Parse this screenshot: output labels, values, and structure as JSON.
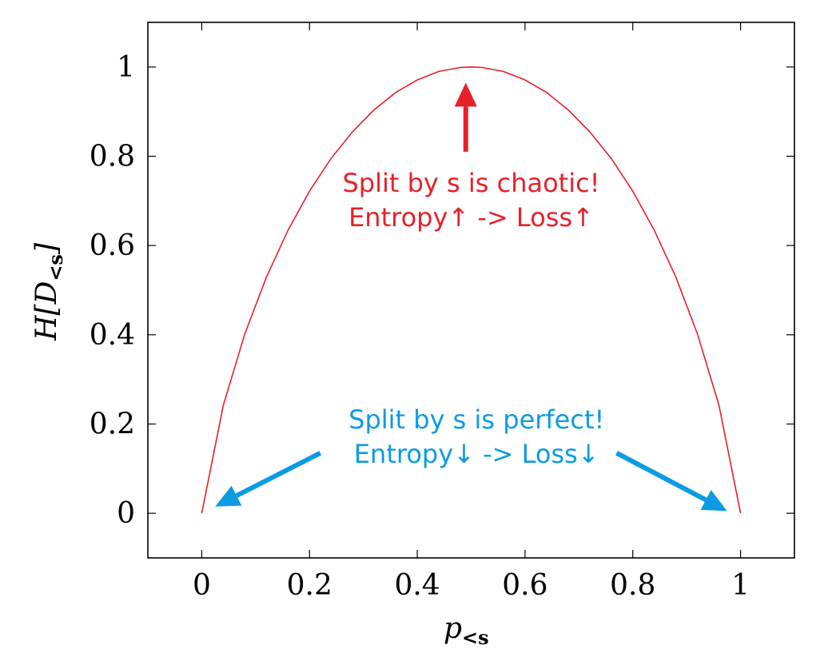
{
  "chart_data": {
    "type": "line",
    "title": "",
    "xlabel": {
      "main": "p",
      "sub": "<s"
    },
    "ylabel": {
      "pre": "H[",
      "script": "D",
      "sub": "<s",
      "post": "]"
    },
    "xlim": [
      -0.1,
      1.1
    ],
    "ylim": [
      -0.1,
      1.1
    ],
    "x_ticks": [
      0,
      0.2,
      0.4,
      0.6,
      0.8,
      1
    ],
    "x_tick_labels": [
      "0",
      "0.2",
      "0.4",
      "0.6",
      "0.8",
      "1"
    ],
    "y_ticks": [
      0,
      0.2,
      0.4,
      0.6,
      0.8,
      1
    ],
    "y_tick_labels": [
      "0",
      "0.2",
      "0.4",
      "0.6",
      "0.8",
      "1"
    ],
    "grid": false,
    "legend": "none",
    "series": [
      {
        "color": "#e8202a",
        "x": [
          0,
          0.04,
          0.08,
          0.12,
          0.16,
          0.2,
          0.24,
          0.28,
          0.32,
          0.36,
          0.4,
          0.44,
          0.48,
          0.5,
          0.52,
          0.56,
          0.6,
          0.64,
          0.68,
          0.72,
          0.76,
          0.8,
          0.84,
          0.88,
          0.92,
          0.96,
          1
        ],
        "y": [
          0,
          0.242,
          0.402,
          0.529,
          0.634,
          0.722,
          0.795,
          0.855,
          0.904,
          0.943,
          0.971,
          0.99,
          0.999,
          1,
          0.999,
          0.99,
          0.971,
          0.943,
          0.904,
          0.855,
          0.795,
          0.722,
          0.634,
          0.529,
          0.402,
          0.242,
          0
        ]
      }
    ],
    "annotations": [
      {
        "lines": [
          "Split by s is chaotic!",
          "Entropy↑ -> Loss↑"
        ],
        "color": "#e8202a",
        "text_anchor": [
          0.5,
          0.72
        ],
        "arrows": [
          {
            "from": [
              0.49,
              0.81
            ],
            "to": [
              0.49,
              0.965
            ]
          }
        ]
      },
      {
        "lines": [
          "Split by s is perfect!",
          "Entropy↓ -> Loss↓"
        ],
        "color": "#0b9be3",
        "text_anchor": [
          0.51,
          0.19
        ],
        "arrows": [
          {
            "from": [
              0.22,
              0.135
            ],
            "to": [
              0.025,
              0.015
            ]
          },
          {
            "from": [
              0.77,
              0.135
            ],
            "to": [
              0.975,
              0.005
            ]
          }
        ]
      }
    ]
  }
}
